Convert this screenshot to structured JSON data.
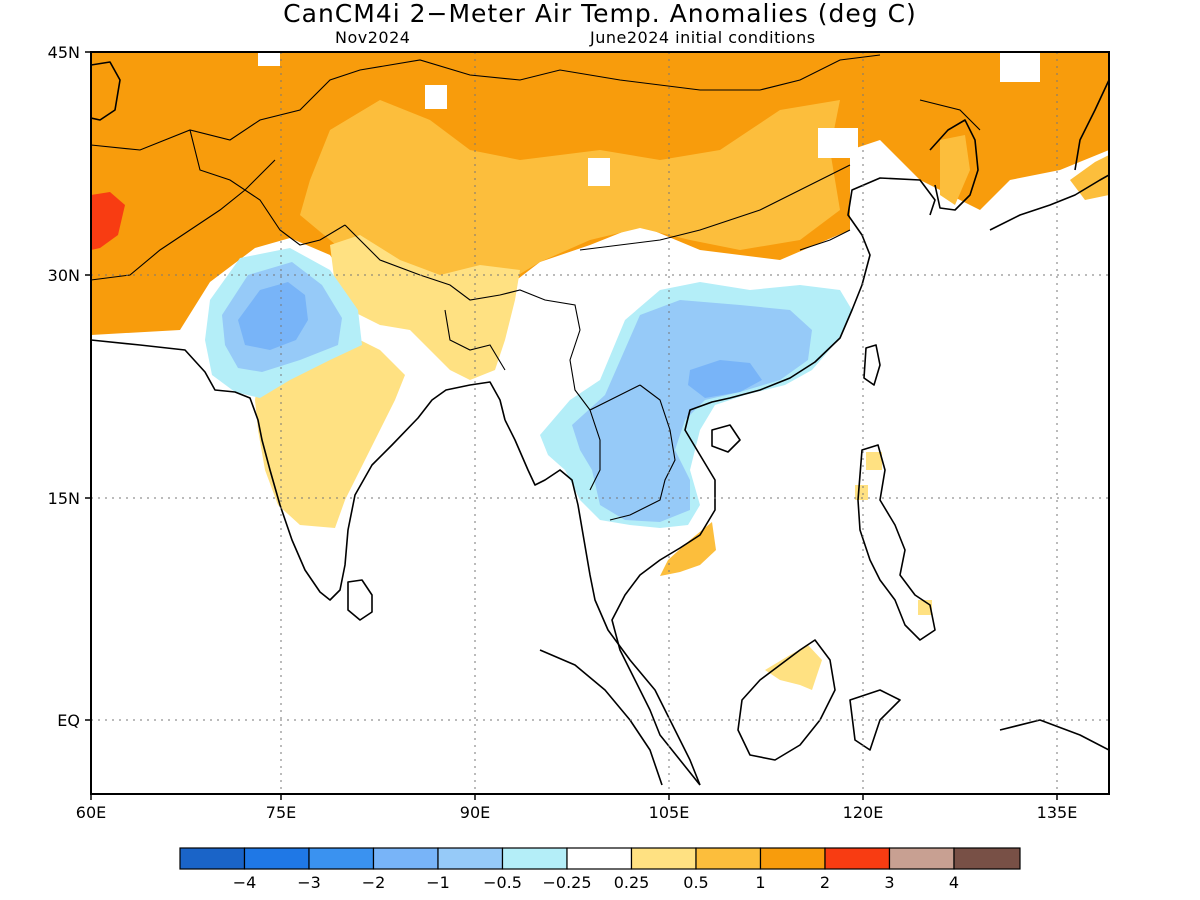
{
  "title": "CanCM4i 2−Meter Air Temp. Anomalies (deg C)",
  "subtitle_left": "Nov2024",
  "subtitle_right": "June2024 initial conditions",
  "lat_labels": [
    "45N",
    "30N",
    "15N",
    "EQ"
  ],
  "lon_labels": [
    "60E",
    "75E",
    "90E",
    "105E",
    "120E",
    "135E"
  ],
  "colors": {
    "lt_neg4": "#1a64c8",
    "neg4_neg3": "#1f78e6",
    "neg3_neg2": "#3a92f0",
    "neg2_neg1": "#78b4f8",
    "neg1_neg05": "#96caf8",
    "neg05_neg025": "#b4eef8",
    "neutral": "#ffffff",
    "p025_p05": "#ffe182",
    "p05_p1": "#fcbe3c",
    "p1_p2": "#f89c0c",
    "p2_p3": "#f83c12",
    "p3_p4": "#c8a092",
    "gt_p4": "#785046"
  },
  "colorbar": {
    "boxes": [
      "#1a64c8",
      "#1f78e6",
      "#3a92f0",
      "#78b4f8",
      "#96caf8",
      "#b4eef8",
      "#ffffff",
      "#ffe182",
      "#fcbe3c",
      "#f89c0c",
      "#f83c12",
      "#c8a092",
      "#785046"
    ],
    "labels": [
      "−4",
      "−3",
      "−2",
      "−1",
      "−0.5",
      "−0.25",
      "0.25",
      "0.5",
      "1",
      "2",
      "3",
      "4"
    ]
  }
}
